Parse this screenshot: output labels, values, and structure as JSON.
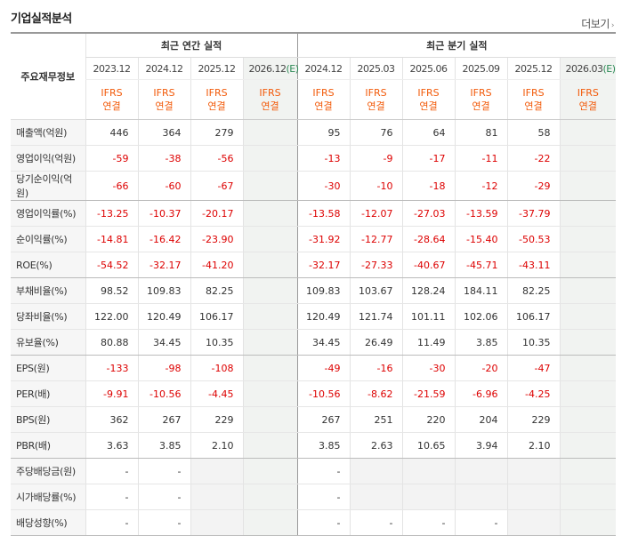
{
  "header": {
    "title": "기업실적분석",
    "more_label": "더보기"
  },
  "table": {
    "label_header": "주요재무정보",
    "annual_title": "최근 연간 실적",
    "quarter_title": "최근 분기 실적",
    "annual_years": [
      "2023.12",
      "2024.12",
      "2025.12",
      "2026.12"
    ],
    "annual_est": "(E)",
    "quarter_periods": [
      "2024.12",
      "2025.03",
      "2025.06",
      "2025.09",
      "2025.12",
      "2026.03"
    ],
    "quarter_est": "(E)",
    "ifrs": "IFRS",
    "basis": "연결",
    "rows": [
      {
        "label": "매출액(억원)",
        "annual": [
          "446",
          "364",
          "279",
          ""
        ],
        "quarter": [
          "95",
          "76",
          "64",
          "81",
          "58",
          ""
        ]
      },
      {
        "label": "영업이익(억원)",
        "annual": [
          "-59",
          "-38",
          "-56",
          ""
        ],
        "quarter": [
          "-13",
          "-9",
          "-17",
          "-11",
          "-22",
          ""
        ]
      },
      {
        "label": "당기순이익(억원)",
        "annual": [
          "-66",
          "-60",
          "-67",
          ""
        ],
        "quarter": [
          "-30",
          "-10",
          "-18",
          "-12",
          "-29",
          ""
        ]
      },
      {
        "label": "영업이익률(%)",
        "annual": [
          "-13.25",
          "-10.37",
          "-20.17",
          ""
        ],
        "quarter": [
          "-13.58",
          "-12.07",
          "-27.03",
          "-13.59",
          "-37.79",
          ""
        ]
      },
      {
        "label": "순이익률(%)",
        "annual": [
          "-14.81",
          "-16.42",
          "-23.90",
          ""
        ],
        "quarter": [
          "-31.92",
          "-12.77",
          "-28.64",
          "-15.40",
          "-50.53",
          ""
        ]
      },
      {
        "label": "ROE(%)",
        "annual": [
          "-54.52",
          "-32.17",
          "-41.20",
          ""
        ],
        "quarter": [
          "-32.17",
          "-27.33",
          "-40.67",
          "-45.71",
          "-43.11",
          ""
        ]
      },
      {
        "label": "부채비율(%)",
        "annual": [
          "98.52",
          "109.83",
          "82.25",
          ""
        ],
        "quarter": [
          "109.83",
          "103.67",
          "128.24",
          "184.11",
          "82.25",
          ""
        ]
      },
      {
        "label": "당좌비율(%)",
        "annual": [
          "122.00",
          "120.49",
          "106.17",
          ""
        ],
        "quarter": [
          "120.49",
          "121.74",
          "101.11",
          "102.06",
          "106.17",
          ""
        ]
      },
      {
        "label": "유보율(%)",
        "annual": [
          "80.88",
          "34.45",
          "10.35",
          ""
        ],
        "quarter": [
          "34.45",
          "26.49",
          "11.49",
          "3.85",
          "10.35",
          ""
        ]
      },
      {
        "label": "EPS(원)",
        "annual": [
          "-133",
          "-98",
          "-108",
          ""
        ],
        "quarter": [
          "-49",
          "-16",
          "-30",
          "-20",
          "-47",
          ""
        ]
      },
      {
        "label": "PER(배)",
        "annual": [
          "-9.91",
          "-10.56",
          "-4.45",
          ""
        ],
        "quarter": [
          "-10.56",
          "-8.62",
          "-21.59",
          "-6.96",
          "-4.25",
          ""
        ]
      },
      {
        "label": "BPS(원)",
        "annual": [
          "362",
          "267",
          "229",
          ""
        ],
        "quarter": [
          "267",
          "251",
          "220",
          "204",
          "229",
          ""
        ]
      },
      {
        "label": "PBR(배)",
        "annual": [
          "3.63",
          "3.85",
          "2.10",
          ""
        ],
        "quarter": [
          "3.85",
          "2.63",
          "10.65",
          "3.94",
          "2.10",
          ""
        ]
      },
      {
        "label": "주당배당금(원)",
        "annual": [
          "-",
          "-",
          "",
          ""
        ],
        "quarter": [
          "-",
          "",
          "",
          "",
          "",
          ""
        ]
      },
      {
        "label": "시가배당률(%)",
        "annual": [
          "-",
          "-",
          "",
          ""
        ],
        "quarter": [
          "-",
          "",
          "",
          "",
          "",
          ""
        ]
      },
      {
        "label": "배당성향(%)",
        "annual": [
          "-",
          "-",
          "",
          ""
        ],
        "quarter": [
          "-",
          "-",
          "-",
          "-",
          "",
          ""
        ]
      }
    ],
    "group_end_rows": [
      2,
      5,
      8,
      12
    ],
    "gray_annual": [
      [
        13,
        2
      ],
      [
        14,
        2
      ],
      [
        15,
        2
      ]
    ],
    "gray_quarter": [
      [
        13,
        1
      ],
      [
        13,
        2
      ],
      [
        13,
        3
      ],
      [
        13,
        4
      ],
      [
        14,
        1
      ],
      [
        14,
        2
      ],
      [
        14,
        3
      ],
      [
        14,
        4
      ],
      [
        15,
        4
      ]
    ],
    "colors": {
      "negative": "#dd0000",
      "ifrs": "#f25a0a",
      "estimate_bg": "#f1f3f1"
    }
  }
}
